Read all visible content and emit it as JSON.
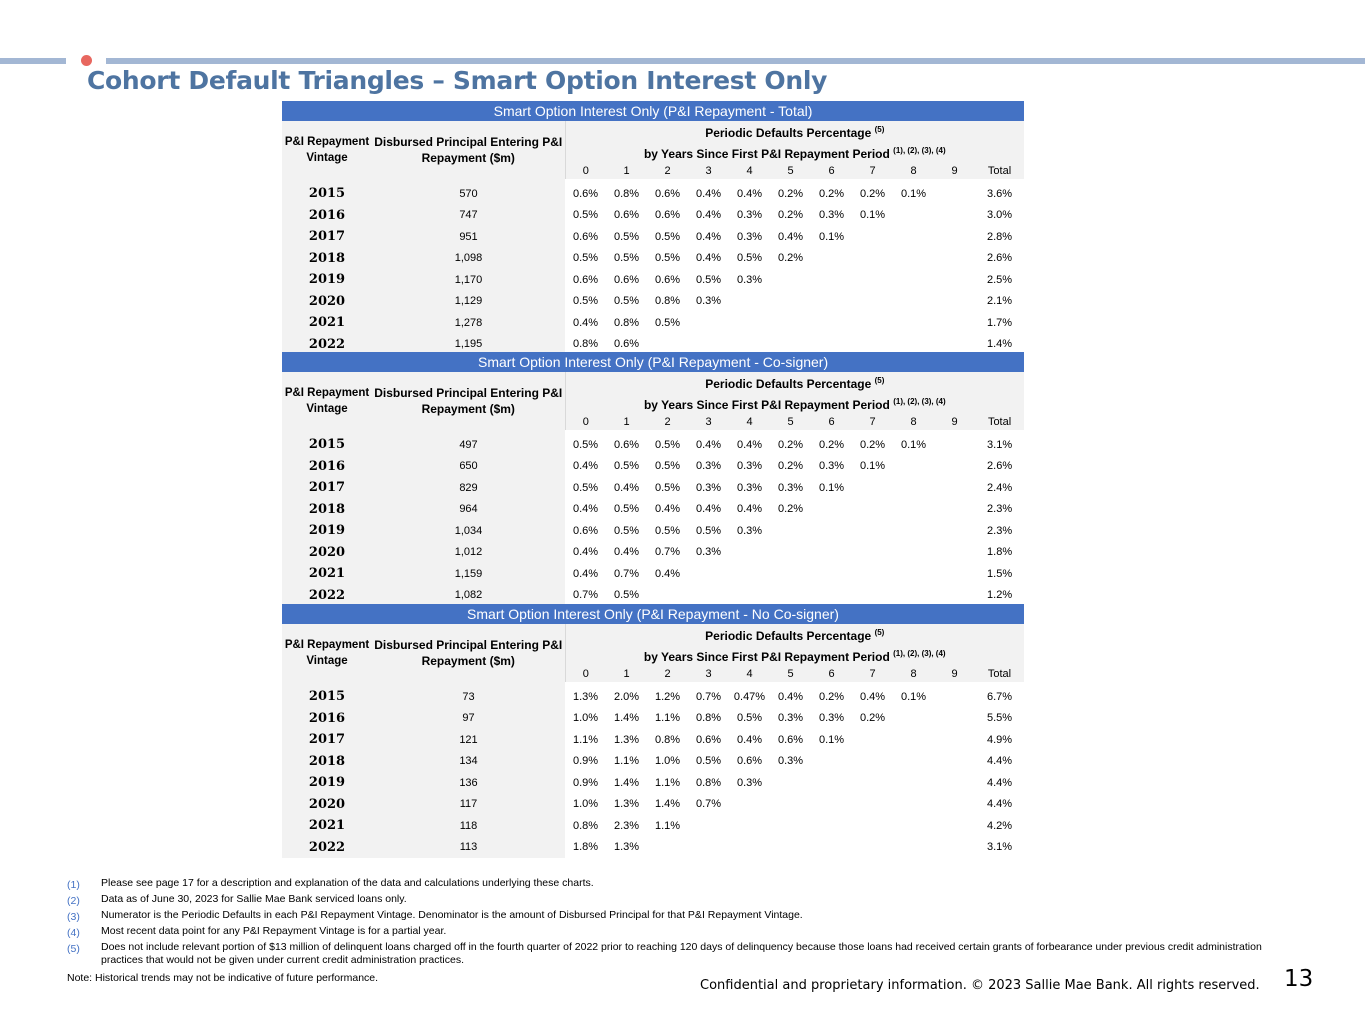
{
  "title": "Cohort Default Triangles – Smart Option Interest Only",
  "column_headers": {
    "vintage": "P&I Repayment Vintage",
    "principal": "Disbursed Principal Entering P&I Repayment ($m)",
    "periodic_line1": "Periodic Defaults Percentage",
    "periodic_sup1": "(5)",
    "periodic_line2": "by Years Since First P&I Repayment Period",
    "periodic_sup2": "(1), (2), (3), (4)",
    "years": [
      "0",
      "1",
      "2",
      "3",
      "4",
      "5",
      "6",
      "7",
      "8",
      "9"
    ],
    "total": "Total"
  },
  "tables": [
    {
      "banner": "Smart Option Interest Only (P&I Repayment - Total)",
      "rows": [
        {
          "vintage": "2015",
          "principal": "570",
          "pcts": [
            "0.6%",
            "0.8%",
            "0.6%",
            "0.4%",
            "0.4%",
            "0.2%",
            "0.2%",
            "0.2%",
            "0.1%",
            ""
          ],
          "total": "3.6%"
        },
        {
          "vintage": "2016",
          "principal": "747",
          "pcts": [
            "0.5%",
            "0.6%",
            "0.6%",
            "0.4%",
            "0.3%",
            "0.2%",
            "0.3%",
            "0.1%",
            "",
            ""
          ],
          "total": "3.0%"
        },
        {
          "vintage": "2017",
          "principal": "951",
          "pcts": [
            "0.6%",
            "0.5%",
            "0.5%",
            "0.4%",
            "0.3%",
            "0.4%",
            "0.1%",
            "",
            "",
            ""
          ],
          "total": "2.8%"
        },
        {
          "vintage": "2018",
          "principal": "1,098",
          "pcts": [
            "0.5%",
            "0.5%",
            "0.5%",
            "0.4%",
            "0.5%",
            "0.2%",
            "",
            "",
            "",
            ""
          ],
          "total": "2.6%"
        },
        {
          "vintage": "2019",
          "principal": "1,170",
          "pcts": [
            "0.6%",
            "0.6%",
            "0.6%",
            "0.5%",
            "0.3%",
            "",
            "",
            "",
            "",
            ""
          ],
          "total": "2.5%"
        },
        {
          "vintage": "2020",
          "principal": "1,129",
          "pcts": [
            "0.5%",
            "0.5%",
            "0.8%",
            "0.3%",
            "",
            "",
            "",
            "",
            "",
            ""
          ],
          "total": "2.1%"
        },
        {
          "vintage": "2021",
          "principal": "1,278",
          "pcts": [
            "0.4%",
            "0.8%",
            "0.5%",
            "",
            "",
            "",
            "",
            "",
            "",
            ""
          ],
          "total": "1.7%"
        },
        {
          "vintage": "2022",
          "principal": "1,195",
          "pcts": [
            "0.8%",
            "0.6%",
            "",
            "",
            "",
            "",
            "",
            "",
            "",
            ""
          ],
          "total": "1.4%"
        }
      ]
    },
    {
      "banner": "Smart Option Interest Only (P&I Repayment - Co-signer)",
      "rows": [
        {
          "vintage": "2015",
          "principal": "497",
          "pcts": [
            "0.5%",
            "0.6%",
            "0.5%",
            "0.4%",
            "0.4%",
            "0.2%",
            "0.2%",
            "0.2%",
            "0.1%",
            ""
          ],
          "total": "3.1%"
        },
        {
          "vintage": "2016",
          "principal": "650",
          "pcts": [
            "0.4%",
            "0.5%",
            "0.5%",
            "0.3%",
            "0.3%",
            "0.2%",
            "0.3%",
            "0.1%",
            "",
            ""
          ],
          "total": "2.6%"
        },
        {
          "vintage": "2017",
          "principal": "829",
          "pcts": [
            "0.5%",
            "0.4%",
            "0.5%",
            "0.3%",
            "0.3%",
            "0.3%",
            "0.1%",
            "",
            "",
            ""
          ],
          "total": "2.4%"
        },
        {
          "vintage": "2018",
          "principal": "964",
          "pcts": [
            "0.4%",
            "0.5%",
            "0.4%",
            "0.4%",
            "0.4%",
            "0.2%",
            "",
            "",
            "",
            ""
          ],
          "total": "2.3%"
        },
        {
          "vintage": "2019",
          "principal": "1,034",
          "pcts": [
            "0.6%",
            "0.5%",
            "0.5%",
            "0.5%",
            "0.3%",
            "",
            "",
            "",
            "",
            ""
          ],
          "total": "2.3%"
        },
        {
          "vintage": "2020",
          "principal": "1,012",
          "pcts": [
            "0.4%",
            "0.4%",
            "0.7%",
            "0.3%",
            "",
            "",
            "",
            "",
            "",
            ""
          ],
          "total": "1.8%"
        },
        {
          "vintage": "2021",
          "principal": "1,159",
          "pcts": [
            "0.4%",
            "0.7%",
            "0.4%",
            "",
            "",
            "",
            "",
            "",
            "",
            ""
          ],
          "total": "1.5%"
        },
        {
          "vintage": "2022",
          "principal": "1,082",
          "pcts": [
            "0.7%",
            "0.5%",
            "",
            "",
            "",
            "",
            "",
            "",
            "",
            ""
          ],
          "total": "1.2%"
        }
      ]
    },
    {
      "banner": "Smart Option Interest Only (P&I Repayment - No Co-signer)",
      "rows": [
        {
          "vintage": "2015",
          "principal": "73",
          "pcts": [
            "1.3%",
            "2.0%",
            "1.2%",
            "0.7%",
            "0.47%",
            "0.4%",
            "0.2%",
            "0.4%",
            "0.1%",
            ""
          ],
          "total": "6.7%"
        },
        {
          "vintage": "2016",
          "principal": "97",
          "pcts": [
            "1.0%",
            "1.4%",
            "1.1%",
            "0.8%",
            "0.5%",
            "0.3%",
            "0.3%",
            "0.2%",
            "",
            ""
          ],
          "total": "5.5%"
        },
        {
          "vintage": "2017",
          "principal": "121",
          "pcts": [
            "1.1%",
            "1.3%",
            "0.8%",
            "0.6%",
            "0.4%",
            "0.6%",
            "0.1%",
            "",
            "",
            ""
          ],
          "total": "4.9%"
        },
        {
          "vintage": "2018",
          "principal": "134",
          "pcts": [
            "0.9%",
            "1.1%",
            "1.0%",
            "0.5%",
            "0.6%",
            "0.3%",
            "",
            "",
            "",
            ""
          ],
          "total": "4.4%"
        },
        {
          "vintage": "2019",
          "principal": "136",
          "pcts": [
            "0.9%",
            "1.4%",
            "1.1%",
            "0.8%",
            "0.3%",
            "",
            "",
            "",
            "",
            ""
          ],
          "total": "4.4%"
        },
        {
          "vintage": "2020",
          "principal": "117",
          "pcts": [
            "1.0%",
            "1.3%",
            "1.4%",
            "0.7%",
            "",
            "",
            "",
            "",
            "",
            ""
          ],
          "total": "4.4%"
        },
        {
          "vintage": "2021",
          "principal": "118",
          "pcts": [
            "0.8%",
            "2.3%",
            "1.1%",
            "",
            "",
            "",
            "",
            "",
            "",
            ""
          ],
          "total": "4.2%"
        },
        {
          "vintage": "2022",
          "principal": "113",
          "pcts": [
            "1.8%",
            "1.3%",
            "",
            "",
            "",
            "",
            "",
            "",
            "",
            ""
          ],
          "total": "3.1%"
        }
      ]
    }
  ],
  "footnotes": [
    {
      "num": "(1)",
      "text": "Please see page 17 for a description and explanation of the data and calculations underlying these charts."
    },
    {
      "num": "(2)",
      "text": "Data as of  June 30, 2023 for Sallie Mae Bank serviced loans only."
    },
    {
      "num": "(3)",
      "text": "Numerator is the Periodic Defaults in each P&I Repayment Vintage. Denominator is the amount of Disbursed Principal for that P&I Repayment Vintage."
    },
    {
      "num": "(4)",
      "text": "Most recent data point for any P&I Repayment Vintage is for a partial year."
    },
    {
      "num": "(5)",
      "text": "Does not include relevant portion of $13 million of delinquent loans charged off in the fourth quarter of 2022 prior to reaching 120 days of delinquency because those loans had received certain grants of forbearance under previous credit administration practices that would not be given under current credit administration practices."
    }
  ],
  "note": "Note: Historical trends may not be indicative of future performance.",
  "confidential": "Confidential and proprietary information. © 2023 Sallie Mae Bank. All rights reserved.",
  "page_number": "13",
  "colors": {
    "accent": "#4472c4",
    "title": "#4e74a1",
    "rule": "#a3b7d4",
    "dot": "#e8675f",
    "header_bg": "#f2f2f2"
  }
}
